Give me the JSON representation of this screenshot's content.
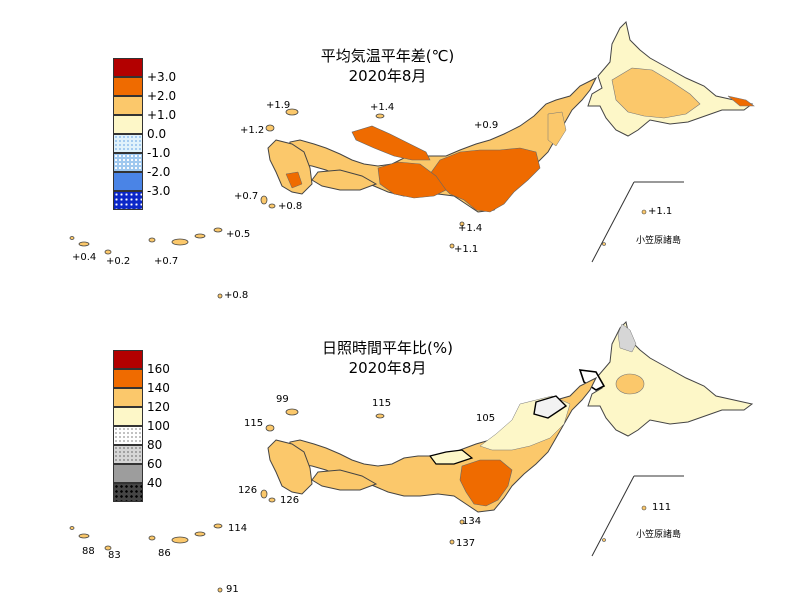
{
  "colors": {
    "warm3": "#b30000",
    "warm2": "#ef6b00",
    "warm1": "#fbc86b",
    "warm0": "#fdf7c8",
    "cool1": "#e0f2fb",
    "cool2": "#9fc8ef",
    "cool3": "#4a84e6",
    "cool4": "#0b27c8",
    "grey1": "#f2f2f2",
    "grey2": "#d6d6d6",
    "grey3": "#9d9d9d",
    "grey4": "#454545"
  },
  "temperature": {
    "title_line1": "平均気温平年差(℃)",
    "title_line2": "2020年8月",
    "legend": [
      "+3.0",
      "+2.0",
      "+1.0",
      "0.0",
      "-1.0",
      "-2.0",
      "-3.0"
    ],
    "labels": {
      "sado": "+1.9",
      "noto": "+1.4",
      "oki": "+1.2",
      "north": "+0.9",
      "goto": "+0.7",
      "tsushima": "+0.8",
      "hachijo": "+1.4",
      "izu_south": "+1.1",
      "amami": "+0.5",
      "yonaguni": "+0.4",
      "ishigaki": "+0.2",
      "okinawa": "+0.7",
      "daito": "+0.8",
      "ogasawara_val": "+1.1",
      "ogasawara_name": "小笠原諸島"
    }
  },
  "sunshine": {
    "title_line1": "日照時間平年比(%)",
    "title_line2": "2020年8月",
    "legend": [
      "160",
      "140",
      "120",
      "100",
      "80",
      "60",
      "40"
    ],
    "labels": {
      "sado": "99",
      "noto": "115",
      "oki": "115",
      "north": "105",
      "goto": "126",
      "tsushima": "126",
      "hachijo": "134",
      "izu_south": "137",
      "amami": "114",
      "yonaguni": "88",
      "ishigaki": "83",
      "okinawa": "86",
      "daito": "91",
      "ogasawara_val": "111",
      "ogasawara_name": "小笠原諸島"
    }
  }
}
